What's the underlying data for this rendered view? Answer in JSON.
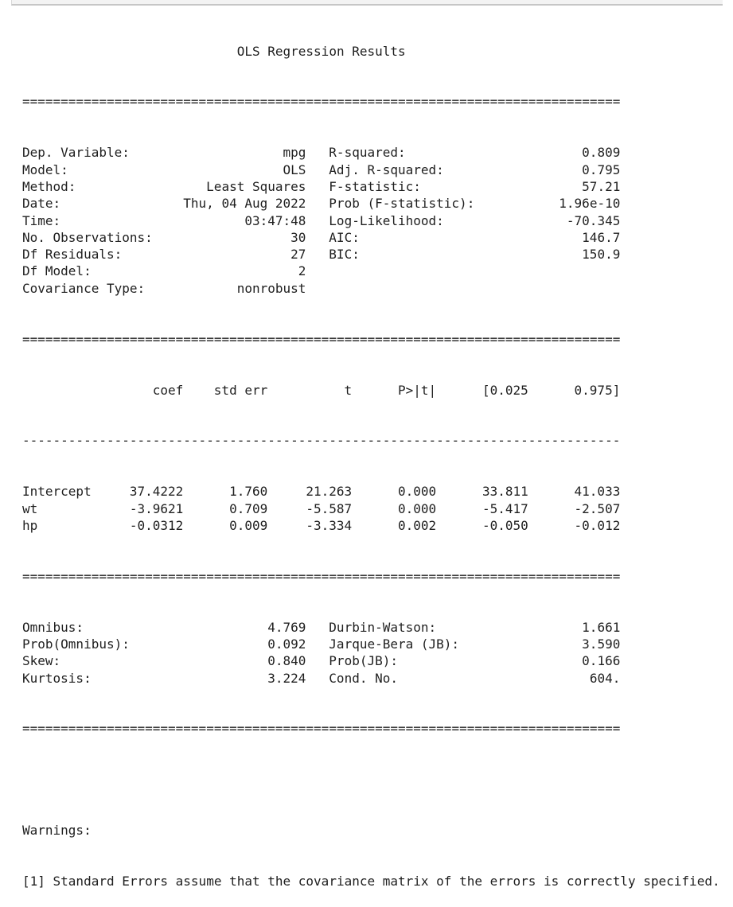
{
  "page": {
    "background": "#ffffff",
    "text_color": "#1f1f1f",
    "top_bar_fill": "#f3f3f3",
    "top_bar_border": "#c6c6c6"
  },
  "report": {
    "title": "OLS Regression Results",
    "info_rows": [
      {
        "left_label": "Dep. Variable:",
        "left_value": "mpg",
        "right_label": "R-squared:",
        "right_value": "0.809"
      },
      {
        "left_label": "Model:",
        "left_value": "OLS",
        "right_label": "Adj. R-squared:",
        "right_value": "0.795"
      },
      {
        "left_label": "Method:",
        "left_value": "Least Squares",
        "right_label": "F-statistic:",
        "right_value": "57.21"
      },
      {
        "left_label": "Date:",
        "left_value": "Thu, 04 Aug 2022",
        "right_label": "Prob (F-statistic):",
        "right_value": "1.96e-10"
      },
      {
        "left_label": "Time:",
        "left_value": "03:47:48",
        "right_label": "Log-Likelihood:",
        "right_value": "-70.345"
      },
      {
        "left_label": "No. Observations:",
        "left_value": "30",
        "right_label": "AIC:",
        "right_value": "146.7"
      },
      {
        "left_label": "Df Residuals:",
        "left_value": "27",
        "right_label": "BIC:",
        "right_value": "150.9"
      },
      {
        "left_label": "Df Model:",
        "left_value": "2",
        "right_label": "",
        "right_value": ""
      },
      {
        "left_label": "Covariance Type:",
        "left_value": "nonrobust",
        "right_label": "",
        "right_value": ""
      }
    ],
    "coef_table": {
      "headers": [
        "coef",
        "std err",
        "t",
        "P>|t|",
        "[0.025",
        "0.975]"
      ],
      "rows": [
        {
          "name": "Intercept",
          "values": [
            "37.4222",
            "1.760",
            "21.263",
            "0.000",
            "33.811",
            "41.033"
          ]
        },
        {
          "name": "wt",
          "values": [
            "-3.9621",
            "0.709",
            "-5.587",
            "0.000",
            "-5.417",
            "-2.507"
          ]
        },
        {
          "name": "hp",
          "values": [
            "-0.0312",
            "0.009",
            "-3.334",
            "0.002",
            "-0.050",
            "-0.012"
          ]
        }
      ]
    },
    "diagnostic_rows": [
      {
        "left_label": "Omnibus:",
        "left_value": "4.769",
        "right_label": "Durbin-Watson:",
        "right_value": "1.661"
      },
      {
        "left_label": "Prob(Omnibus):",
        "left_value": "0.092",
        "right_label": "Jarque-Bera (JB):",
        "right_value": "3.590"
      },
      {
        "left_label": "Skew:",
        "left_value": "0.840",
        "right_label": "Prob(JB):",
        "right_value": "0.166"
      },
      {
        "left_label": "Kurtosis:",
        "left_value": "3.224",
        "right_label": "Cond. No.",
        "right_value": "604."
      }
    ],
    "warnings": {
      "heading": "Warnings:",
      "lines": [
        "[1] Standard Errors assume that the covariance matrix of the errors is correctly specified."
      ]
    }
  }
}
